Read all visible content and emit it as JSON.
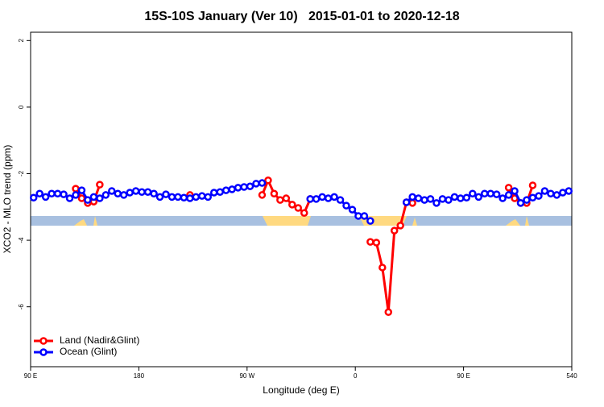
{
  "chart_data": {
    "type": "line",
    "title": "15S-10S January (Ver 10)   2015-01-01 to 2020-12-18",
    "x_label": "Longitude (deg E)",
    "y_label": "XCO2 - MLO trend (ppm)",
    "x": [
      92.5,
      97.5,
      102.5,
      107.5,
      112.5,
      117.5,
      122.5,
      127.5,
      132.5,
      137.5,
      142.5,
      147.5,
      152.5,
      157.5,
      162.5,
      167.5,
      172.5,
      177.5,
      182.5,
      187.5,
      192.5,
      197.5,
      202.5,
      207.5,
      212.5,
      217.5,
      222.5,
      227.5,
      232.5,
      237.5,
      242.5,
      247.5,
      252.5,
      257.5,
      262.5,
      267.5,
      272.5,
      277.5,
      282.5,
      287.5,
      292.5,
      297.5,
      302.5,
      307.5,
      312.5,
      317.5,
      322.5,
      327.5,
      332.5,
      337.5,
      342.5,
      347.5,
      352.5,
      357.5,
      362.5,
      367.5,
      372.5,
      377.5,
      382.5,
      387.5,
      392.5,
      397.5,
      402.5,
      407.5,
      412.5,
      417.5,
      422.5,
      427.5,
      432.5,
      437.5,
      442.5,
      447.5,
      452.5,
      457.5,
      462.5,
      467.5,
      472.5,
      477.5,
      482.5,
      487.5,
      492.5,
      497.5,
      502.5,
      507.5,
      512.5,
      517.5,
      522.5,
      527.5,
      532.5,
      537.5
    ],
    "series": [
      {
        "name": "Land (Nadir&Glint)",
        "color": "#ff0000",
        "values": [
          null,
          null,
          null,
          null,
          null,
          null,
          null,
          -2.45,
          -2.74,
          -2.88,
          -2.84,
          -2.33,
          null,
          null,
          null,
          null,
          null,
          null,
          null,
          null,
          null,
          null,
          null,
          null,
          null,
          null,
          -2.64,
          null,
          null,
          null,
          null,
          null,
          null,
          null,
          null,
          null,
          null,
          null,
          -2.64,
          -2.2,
          -2.6,
          -2.79,
          -2.74,
          -2.93,
          -3.03,
          -3.18,
          -2.76,
          null,
          null,
          null,
          null,
          null,
          null,
          null,
          null,
          null,
          -4.05,
          -4.07,
          -4.82,
          -6.16,
          -3.71,
          -3.56,
          -2.86,
          -2.88,
          null,
          null,
          null,
          null,
          null,
          null,
          null,
          null,
          null,
          null,
          null,
          null,
          null,
          null,
          null,
          -2.42,
          -2.74,
          -2.88,
          -2.88,
          -2.35,
          null,
          null,
          null,
          null,
          null,
          null
        ]
      },
      {
        "name": "Ocean (Glint)",
        "color": "#0000ff",
        "values": [
          -2.72,
          -2.6,
          -2.7,
          -2.6,
          -2.6,
          -2.62,
          -2.74,
          -2.64,
          -2.5,
          -2.79,
          -2.7,
          -2.74,
          -2.64,
          -2.52,
          -2.6,
          -2.64,
          -2.57,
          -2.52,
          -2.55,
          -2.55,
          -2.6,
          -2.7,
          -2.62,
          -2.7,
          -2.7,
          -2.72,
          -2.74,
          -2.7,
          -2.67,
          -2.7,
          -2.57,
          -2.55,
          -2.5,
          -2.47,
          -2.42,
          -2.4,
          -2.38,
          -2.3,
          -2.28,
          null,
          null,
          null,
          null,
          null,
          null,
          null,
          -2.76,
          -2.76,
          -2.7,
          -2.74,
          -2.7,
          -2.79,
          -2.96,
          -3.08,
          -3.27,
          -3.27,
          -3.42,
          null,
          null,
          null,
          null,
          null,
          -2.86,
          -2.7,
          -2.74,
          -2.79,
          -2.76,
          -2.88,
          -2.76,
          -2.79,
          -2.7,
          -2.74,
          -2.72,
          -2.6,
          -2.7,
          -2.6,
          -2.6,
          -2.62,
          -2.74,
          -2.64,
          -2.52,
          -2.88,
          -2.79,
          -2.72,
          -2.67,
          -2.52,
          -2.6,
          -2.64,
          -2.57,
          -2.52
        ]
      }
    ],
    "xlim": [
      90,
      540
    ],
    "xticks": [
      {
        "value": 90,
        "label": "90 E"
      },
      180,
      {
        "value": 270,
        "label": "90 W"
      },
      {
        "value": 360,
        "label": "0"
      },
      {
        "value": 450,
        "label": "90 E"
      },
      540
    ],
    "ylim": [
      -7.8,
      2.25
    ],
    "yticks": [
      2,
      0,
      -2,
      -4,
      -6
    ],
    "legend": "bottom-left"
  }
}
